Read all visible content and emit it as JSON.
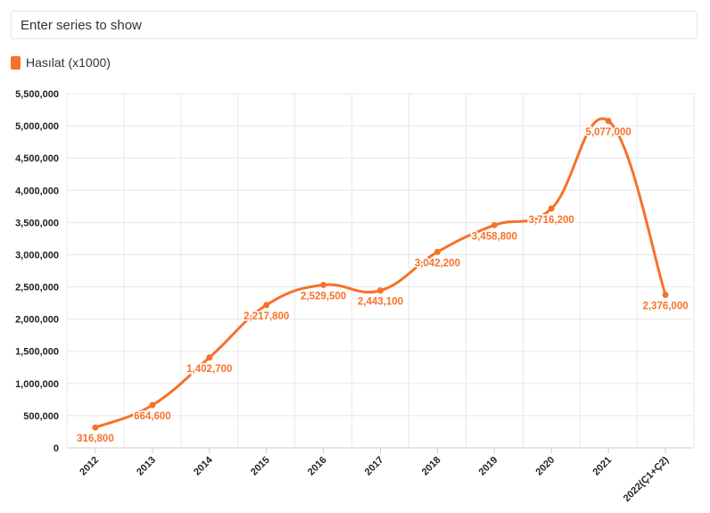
{
  "search": {
    "placeholder": "Enter series to show"
  },
  "colors": {
    "series": "#f5722a",
    "grid": "#e8e8e8",
    "axis": "#cccccc"
  },
  "chart_data": {
    "type": "line",
    "categories": [
      "2012",
      "2013",
      "2014",
      "2015",
      "2016",
      "2017",
      "2018",
      "2019",
      "2020",
      "2021",
      "2022(Ç1+Ç2)"
    ],
    "series": [
      {
        "name": "Hasılat (x1000)",
        "values": [
          316800,
          664600,
          1402700,
          2217800,
          2529500,
          2443100,
          3042200,
          3458800,
          3716200,
          5077000,
          2376000
        ],
        "labels": [
          "316,800",
          "664,600",
          "1,402,700",
          "2,217,800",
          "2,529,500",
          "2,443,100",
          "3,042,200",
          "3,458,800",
          "3,716,200",
          "5,077,000",
          "2,376,000"
        ]
      }
    ],
    "y_ticks": [
      "0",
      "500,000",
      "1,000,000",
      "1,500,000",
      "2,000,000",
      "2,500,000",
      "3,000,000",
      "3,500,000",
      "4,000,000",
      "4,500,000",
      "5,000,000",
      "5,500,000"
    ],
    "ylim": [
      0,
      5500000
    ],
    "grid": true,
    "legend_position": "top-left",
    "smooth": true
  }
}
